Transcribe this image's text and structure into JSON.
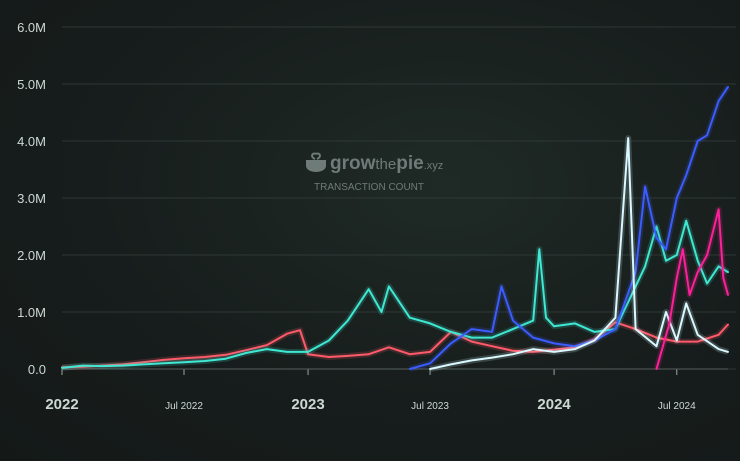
{
  "watermark": {
    "brand_prefix": "grow",
    "brand_mid": "the",
    "brand_suffix": "pie",
    "brand_tld": ".xyz",
    "subtitle": "TRANSACTION COUNT"
  },
  "chart_data": {
    "type": "line",
    "title": "TRANSACTION COUNT",
    "xlabel": "",
    "ylabel": "",
    "x_range": [
      "2022-01-01",
      "2024-09-15"
    ],
    "ylim": [
      0,
      6000000
    ],
    "y_ticks": [
      {
        "value": 0,
        "label": "0.0"
      },
      {
        "value": 1000000,
        "label": "1.0M"
      },
      {
        "value": 2000000,
        "label": "2.0M"
      },
      {
        "value": 3000000,
        "label": "3.0M"
      },
      {
        "value": 4000000,
        "label": "4.0M"
      },
      {
        "value": 5000000,
        "label": "5.0M"
      },
      {
        "value": 6000000,
        "label": "6.0M"
      }
    ],
    "x_ticks": [
      {
        "date": "2022-01-01",
        "label": "2022",
        "major": true
      },
      {
        "date": "2022-07-01",
        "label": "Jul 2022",
        "major": false
      },
      {
        "date": "2023-01-01",
        "label": "2023",
        "major": true
      },
      {
        "date": "2023-07-01",
        "label": "Jul 2023",
        "major": false
      },
      {
        "date": "2024-01-01",
        "label": "2024",
        "major": true
      },
      {
        "date": "2024-07-01",
        "label": "Jul 2024",
        "major": false
      }
    ],
    "grid": true,
    "legend": "none",
    "series": [
      {
        "color": "#ff5a6a",
        "points": [
          [
            "2022-01-01",
            30000
          ],
          [
            "2022-02-01",
            40000
          ],
          [
            "2022-03-01",
            60000
          ],
          [
            "2022-04-01",
            80000
          ],
          [
            "2022-05-01",
            120000
          ],
          [
            "2022-06-01",
            160000
          ],
          [
            "2022-07-01",
            190000
          ],
          [
            "2022-08-01",
            210000
          ],
          [
            "2022-09-01",
            250000
          ],
          [
            "2022-10-01",
            330000
          ],
          [
            "2022-11-01",
            420000
          ],
          [
            "2022-12-01",
            620000
          ],
          [
            "2022-12-20",
            680000
          ],
          [
            "2023-01-01",
            260000
          ],
          [
            "2023-02-01",
            210000
          ],
          [
            "2023-03-01",
            230000
          ],
          [
            "2023-04-01",
            260000
          ],
          [
            "2023-05-01",
            380000
          ],
          [
            "2023-06-01",
            260000
          ],
          [
            "2023-07-01",
            300000
          ],
          [
            "2023-08-01",
            650000
          ],
          [
            "2023-09-01",
            480000
          ],
          [
            "2023-10-01",
            400000
          ],
          [
            "2023-11-01",
            320000
          ],
          [
            "2023-12-01",
            300000
          ],
          [
            "2024-01-01",
            340000
          ],
          [
            "2024-02-01",
            380000
          ],
          [
            "2024-03-01",
            520000
          ],
          [
            "2024-04-01",
            820000
          ],
          [
            "2024-05-01",
            700000
          ],
          [
            "2024-06-01",
            550000
          ],
          [
            "2024-07-01",
            480000
          ],
          [
            "2024-08-01",
            480000
          ],
          [
            "2024-09-01",
            600000
          ],
          [
            "2024-09-15",
            780000
          ]
        ]
      },
      {
        "color": "#3fe8d2",
        "points": [
          [
            "2022-01-01",
            20000
          ],
          [
            "2022-02-01",
            60000
          ],
          [
            "2022-03-01",
            50000
          ],
          [
            "2022-04-01",
            60000
          ],
          [
            "2022-05-01",
            80000
          ],
          [
            "2022-06-01",
            100000
          ],
          [
            "2022-07-01",
            120000
          ],
          [
            "2022-08-01",
            140000
          ],
          [
            "2022-09-01",
            180000
          ],
          [
            "2022-10-01",
            280000
          ],
          [
            "2022-11-01",
            350000
          ],
          [
            "2022-12-01",
            300000
          ],
          [
            "2023-01-01",
            300000
          ],
          [
            "2023-02-01",
            500000
          ],
          [
            "2023-03-01",
            850000
          ],
          [
            "2023-04-01",
            1400000
          ],
          [
            "2023-04-20",
            1000000
          ],
          [
            "2023-05-01",
            1450000
          ],
          [
            "2023-06-01",
            900000
          ],
          [
            "2023-07-01",
            800000
          ],
          [
            "2023-08-01",
            650000
          ],
          [
            "2023-09-01",
            550000
          ],
          [
            "2023-10-01",
            550000
          ],
          [
            "2023-11-01",
            700000
          ],
          [
            "2023-12-01",
            850000
          ],
          [
            "2023-12-10",
            2100000
          ],
          [
            "2023-12-20",
            900000
          ],
          [
            "2024-01-01",
            750000
          ],
          [
            "2024-02-01",
            800000
          ],
          [
            "2024-03-01",
            650000
          ],
          [
            "2024-04-01",
            700000
          ],
          [
            "2024-05-01",
            1450000
          ],
          [
            "2024-05-15",
            1800000
          ],
          [
            "2024-06-01",
            2500000
          ],
          [
            "2024-06-15",
            1900000
          ],
          [
            "2024-07-01",
            2000000
          ],
          [
            "2024-07-15",
            2600000
          ],
          [
            "2024-08-01",
            1900000
          ],
          [
            "2024-08-15",
            1500000
          ],
          [
            "2024-09-01",
            1800000
          ],
          [
            "2024-09-15",
            1700000
          ]
        ]
      },
      {
        "color": "#3b5cff",
        "points": [
          [
            "2023-06-01",
            0
          ],
          [
            "2023-07-01",
            100000
          ],
          [
            "2023-08-01",
            450000
          ],
          [
            "2023-09-01",
            700000
          ],
          [
            "2023-10-01",
            650000
          ],
          [
            "2023-10-15",
            1450000
          ],
          [
            "2023-11-01",
            850000
          ],
          [
            "2023-12-01",
            550000
          ],
          [
            "2024-01-01",
            450000
          ],
          [
            "2024-02-01",
            400000
          ],
          [
            "2024-03-01",
            500000
          ],
          [
            "2024-04-01",
            700000
          ],
          [
            "2024-05-01",
            1700000
          ],
          [
            "2024-05-15",
            3200000
          ],
          [
            "2024-06-01",
            2300000
          ],
          [
            "2024-06-15",
            2100000
          ],
          [
            "2024-07-01",
            3000000
          ],
          [
            "2024-07-15",
            3400000
          ],
          [
            "2024-08-01",
            4000000
          ],
          [
            "2024-08-15",
            4100000
          ],
          [
            "2024-09-01",
            4700000
          ],
          [
            "2024-09-15",
            4950000
          ]
        ]
      },
      {
        "color": "#d9f8ff",
        "points": [
          [
            "2023-07-01",
            0
          ],
          [
            "2023-08-01",
            80000
          ],
          [
            "2023-09-01",
            150000
          ],
          [
            "2023-10-01",
            200000
          ],
          [
            "2023-11-01",
            260000
          ],
          [
            "2023-12-01",
            350000
          ],
          [
            "2024-01-01",
            300000
          ],
          [
            "2024-02-01",
            350000
          ],
          [
            "2024-03-01",
            500000
          ],
          [
            "2024-04-01",
            900000
          ],
          [
            "2024-04-20",
            4050000
          ],
          [
            "2024-05-01",
            700000
          ],
          [
            "2024-06-01",
            400000
          ],
          [
            "2024-06-15",
            1000000
          ],
          [
            "2024-07-01",
            500000
          ],
          [
            "2024-07-15",
            1150000
          ],
          [
            "2024-08-01",
            600000
          ],
          [
            "2024-09-01",
            350000
          ],
          [
            "2024-09-15",
            300000
          ]
        ]
      },
      {
        "color": "#ff1f9a",
        "points": [
          [
            "2024-06-01",
            0
          ],
          [
            "2024-06-20",
            800000
          ],
          [
            "2024-07-01",
            1600000
          ],
          [
            "2024-07-10",
            2100000
          ],
          [
            "2024-07-20",
            1300000
          ],
          [
            "2024-08-01",
            1700000
          ],
          [
            "2024-08-15",
            2000000
          ],
          [
            "2024-09-01",
            2800000
          ],
          [
            "2024-09-08",
            1600000
          ],
          [
            "2024-09-15",
            1300000
          ]
        ]
      }
    ]
  }
}
